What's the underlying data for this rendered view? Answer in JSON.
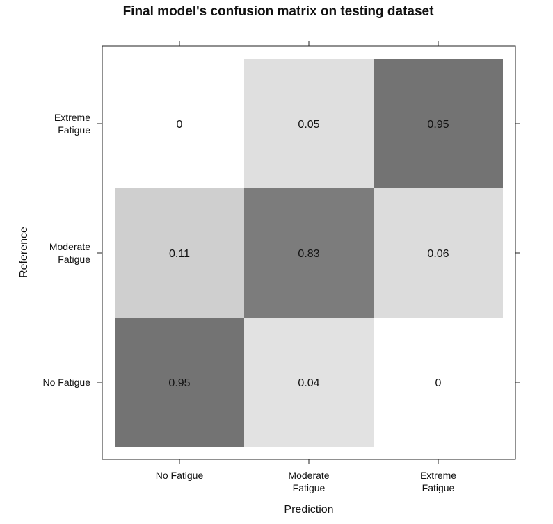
{
  "chart_data": {
    "type": "heatmap",
    "title": "Final model's confusion matrix on testing dataset",
    "xlabel": "Prediction",
    "ylabel": "Reference",
    "x_categories": [
      [
        "No Fatigue"
      ],
      [
        "Moderate",
        "Fatigue"
      ],
      [
        "Extreme",
        "Fatigue"
      ]
    ],
    "y_categories": [
      [
        "No Fatigue"
      ],
      [
        "Moderate",
        "Fatigue"
      ],
      [
        "Extreme",
        "Fatigue"
      ]
    ],
    "values": [
      [
        0.95,
        0.04,
        0
      ],
      [
        0.11,
        0.83,
        0.06
      ],
      [
        0,
        0.05,
        0.95
      ]
    ],
    "value_labels": [
      [
        "0.95",
        "0.04",
        "0"
      ],
      [
        "0.11",
        "0.83",
        "0.06"
      ],
      [
        "0",
        "0.05",
        "0.95"
      ]
    ],
    "color_low": "#ffffff",
    "color_high": "#737373",
    "grid": false,
    "legend": "none"
  }
}
